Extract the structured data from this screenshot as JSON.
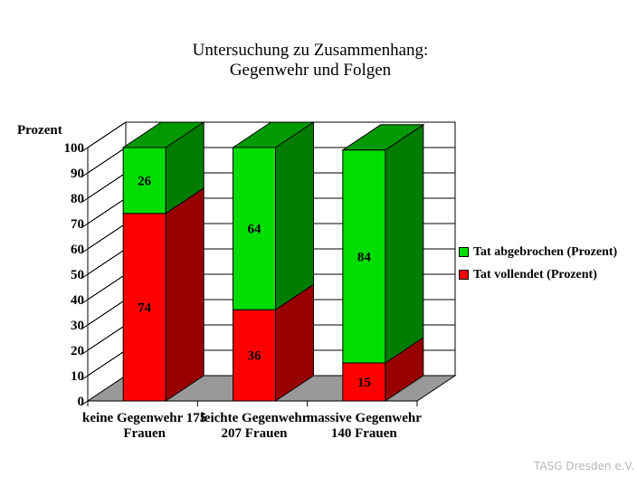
{
  "page": {
    "background": "#ffffff",
    "credit": "TASG Dresden e.V."
  },
  "chart_data": {
    "type": "bar",
    "stacked": true,
    "style": "3d",
    "title_lines": [
      "Untersuchung zu Zusammenhang:",
      "Gegenwehr und Folgen"
    ],
    "ylabel": "Prozent",
    "ylim": [
      0,
      100
    ],
    "ytick_step": 10,
    "grid": true,
    "legend_position": "right",
    "categories": [
      [
        "keine Gegenwehr 175",
        "Frauen"
      ],
      [
        "leichte Gegenwehr",
        "207 Frauen"
      ],
      [
        "massive Gegenwehr",
        "140 Frauen"
      ]
    ],
    "series": [
      {
        "name": "Tat vollendet (Prozent)",
        "values": [
          74,
          36,
          15
        ],
        "color": "#ff0000",
        "dark": "#990000",
        "top": "#bb0000"
      },
      {
        "name": "Tat abgebrochen (Prozent)",
        "values": [
          26,
          64,
          84
        ],
        "color": "#00dd00",
        "dark": "#007d00",
        "top": "#009a00"
      }
    ],
    "colors": {
      "floor": "#999999",
      "wall": "#ffffff",
      "line": "#000000"
    }
  }
}
